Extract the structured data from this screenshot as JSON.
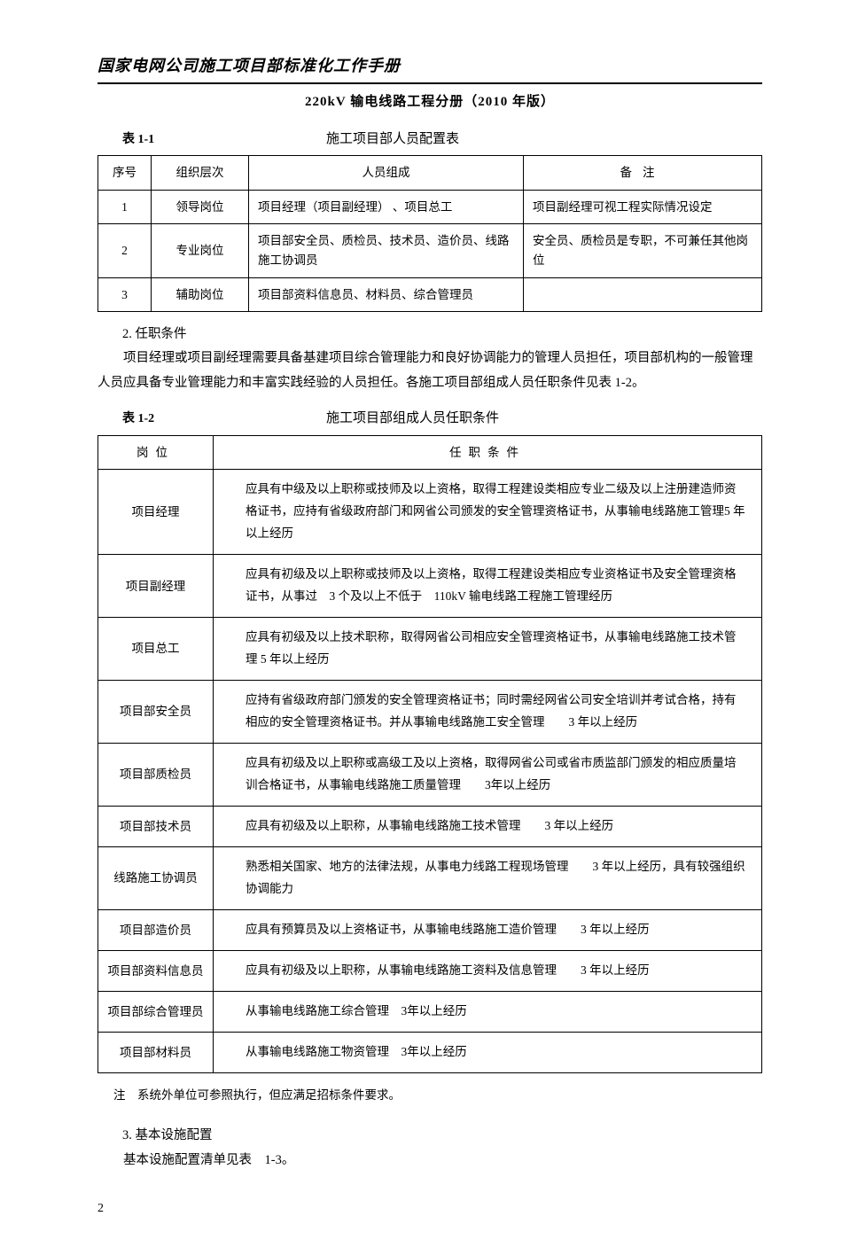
{
  "header": {
    "main_title": "国家电网公司施工项目部标准化工作手册",
    "sub_title": "220kV 输电线路工程分册（2010 年版）"
  },
  "table1": {
    "label": "表 1-1",
    "caption": "施工项目部人员配置表",
    "headers": [
      "序号",
      "组织层次",
      "人员组成",
      "备注"
    ],
    "rows": [
      [
        "1",
        "领导岗位",
        "项目经理（项目副经理） 、项目总工",
        "项目副经理可视工程实际情况设定"
      ],
      [
        "2",
        "专业岗位",
        "项目部安全员、质检员、技术员、造价员、线路施工协调员",
        "安全员、质检员是专职，不可兼任其他岗位"
      ],
      [
        "3",
        "辅助岗位",
        "项目部资料信息员、材料员、综合管理员",
        ""
      ]
    ]
  },
  "section2": {
    "title": "2. 任职条件",
    "para": "项目经理或项目副经理需要具备基建项目综合管理能力和良好协调能力的管理人员担任，项目部机构的一般管理人员应具备专业管理能力和丰富实践经验的人员担任。各施工项目部组成人员任职条件见表 1-2。"
  },
  "table2": {
    "label": "表 1-2",
    "caption": "施工项目部组成人员任职条件",
    "headers": [
      "岗位",
      "任职条件"
    ],
    "rows": [
      [
        "项目经理",
        "应具有中级及以上职称或技师及以上资格，取得工程建设类相应专业二级及以上注册建造师资格证书，应持有省级政府部门和网省公司颁发的安全管理资格证书，从事输电线路施工管理5 年以上经历"
      ],
      [
        "项目副经理",
        "应具有初级及以上职称或技师及以上资格，取得工程建设类相应专业资格证书及安全管理资格证书，从事过　3 个及以上不低于　110kV 输电线路工程施工管理经历"
      ],
      [
        "项目总工",
        "应具有初级及以上技术职称，取得网省公司相应安全管理资格证书，从事输电线路施工技术管理 5 年以上经历"
      ],
      [
        "项目部安全员",
        "应持有省级政府部门颁发的安全管理资格证书；同时需经网省公司安全培训并考试合格，持有相应的安全管理资格证书。并从事输电线路施工安全管理　　3 年以上经历"
      ],
      [
        "项目部质检员",
        "应具有初级及以上职称或高级工及以上资格，取得网省公司或省市质监部门颁发的相应质量培训合格证书，从事输电线路施工质量管理　　3年以上经历"
      ],
      [
        "项目部技术员",
        "应具有初级及以上职称，从事输电线路施工技术管理　　3 年以上经历"
      ],
      [
        "线路施工协调员",
        "熟悉相关国家、地方的法律法规，从事电力线路工程现场管理　　3 年以上经历，具有较强组织协调能力"
      ],
      [
        "项目部造价员",
        "应具有预算员及以上资格证书，从事输电线路施工造价管理　　3 年以上经历"
      ],
      [
        "项目部资料信息员",
        "应具有初级及以上职称，从事输电线路施工资料及信息管理　　3 年以上经历"
      ],
      [
        "项目部综合管理员",
        "从事输电线路施工综合管理　3年以上经历"
      ],
      [
        "项目部材料员",
        "从事输电线路施工物资管理　3年以上经历"
      ]
    ],
    "note": "注　系统外单位可参照执行，但应满足招标条件要求。"
  },
  "section3": {
    "title": "3. 基本设施配置",
    "para": "基本设施配置清单见表　1-3。"
  },
  "page_number": "2"
}
